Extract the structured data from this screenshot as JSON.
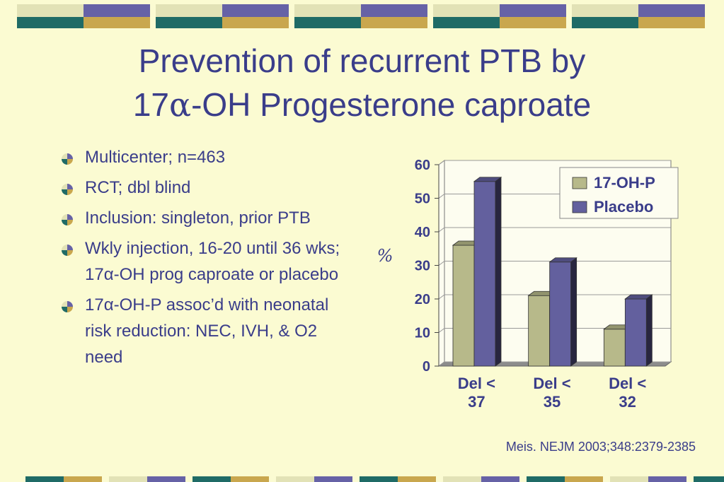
{
  "slide": {
    "title_line1": "Prevention of recurrent PTB by",
    "title_line2_pre": "17",
    "title_line2_alpha": "α",
    "title_line2_post": "-OH Progesterone caproate",
    "citation": "Meis. NEJM 2003;348:2379-2385"
  },
  "bullets": [
    {
      "text": "Multicenter; n=463"
    },
    {
      "text": "RCT; dbl blind"
    },
    {
      "text": "Inclusion: singleton, prior PTB"
    },
    {
      "text": "Wkly injection, 16-20 until 36 wks; 17α-OH prog caproate or placebo"
    },
    {
      "text": "17α-OH-P assoc’d with neonatal risk reduction: NEC, IVH, & O2 need"
    }
  ],
  "colors": {
    "accent": "#3a3d8a",
    "background": "#fbfbd2",
    "series_17ohp": "#b7b98a",
    "series_placebo": "#63609e",
    "deco_teal": "#1f6b66",
    "deco_gold": "#c9a74e",
    "deco_cream": "#e2e2b6",
    "deco_purple": "#6662a6"
  },
  "chart_data": {
    "type": "bar",
    "categories": [
      "Del < 37",
      "Del < 35",
      "Del < 32"
    ],
    "category_lines": [
      [
        "Del <",
        "37"
      ],
      [
        "Del <",
        "35"
      ],
      [
        "Del <",
        "32"
      ]
    ],
    "series": [
      {
        "name": "17-OH-P",
        "values": [
          36,
          21,
          11
        ]
      },
      {
        "name": "Placebo",
        "values": [
          55,
          31,
          20
        ]
      }
    ],
    "ylabel": "%",
    "ylim": [
      0,
      60
    ],
    "yticks": [
      0,
      10,
      20,
      30,
      40,
      50,
      60
    ],
    "grid": true,
    "legend_position": "top-right",
    "style": "3d-bars"
  }
}
